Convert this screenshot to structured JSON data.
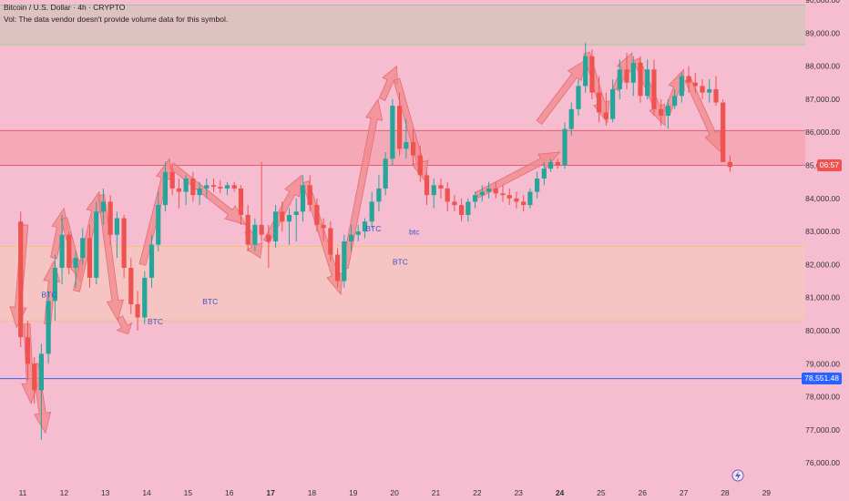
{
  "legend": {
    "symbol_line": "Bitcoin / U.S. Dollar · 4h · CRYPTO",
    "volume_line": "Vol: The data vendor doesn't provide volume data for this symbol."
  },
  "price_tags": {
    "countdown": "06:57",
    "horizontal_line": "78,551.48"
  },
  "colors": {
    "background": "#f6bcd0",
    "up": "#26a69a",
    "down": "#ef5350",
    "arrow_fill": "#f08a8a",
    "zone_top": "#d9c3bf",
    "zone_red": "#f5a6b4",
    "zone_orange": "#f7c6c2",
    "hline": "#2962ff"
  },
  "chart_data": {
    "type": "candlestick",
    "title": "Bitcoin / U.S. Dollar · 4h · CRYPTO",
    "ylim": [
      75400,
      90000
    ],
    "y_ticks": [
      "76,000.00",
      "77,000.00",
      "78,000.00",
      "79,000.00",
      "80,000.00",
      "81,000.00",
      "82,000.00",
      "83,000.00",
      "84,000.00",
      "85,000.00",
      "86,000.00",
      "87,000.00",
      "88,000.00",
      "89,000.00",
      "90,000.00"
    ],
    "x_ticks": [
      {
        "label": "11",
        "day": 11,
        "bold": false
      },
      {
        "label": "12",
        "day": 12,
        "bold": false
      },
      {
        "label": "13",
        "day": 13,
        "bold": false
      },
      {
        "label": "14",
        "day": 14,
        "bold": false
      },
      {
        "label": "15",
        "day": 15,
        "bold": false
      },
      {
        "label": "16",
        "day": 16,
        "bold": false
      },
      {
        "label": "17",
        "day": 17,
        "bold": true
      },
      {
        "label": "18",
        "day": 18,
        "bold": false
      },
      {
        "label": "19",
        "day": 19,
        "bold": false
      },
      {
        "label": "20",
        "day": 20,
        "bold": false
      },
      {
        "label": "21",
        "day": 21,
        "bold": false
      },
      {
        "label": "22",
        "day": 22,
        "bold": false
      },
      {
        "label": "23",
        "day": 23,
        "bold": false
      },
      {
        "label": "24",
        "day": 24,
        "bold": true
      },
      {
        "label": "25",
        "day": 25,
        "bold": false
      },
      {
        "label": "26",
        "day": 26,
        "bold": false
      },
      {
        "label": "27",
        "day": 27,
        "bold": false
      },
      {
        "label": "28",
        "day": 28,
        "bold": false
      },
      {
        "label": "29",
        "day": 29,
        "bold": false
      }
    ],
    "zones": [
      {
        "name": "upper-resistance-zone",
        "y1": 88650,
        "y2": 89850,
        "color": "#d9c3bf",
        "border": "#9cc79c"
      },
      {
        "name": "mid-red-zone",
        "y1": 85000,
        "y2": 86050,
        "color": "#f5a6b4",
        "border": "#e06070"
      },
      {
        "name": "support-zone",
        "y1": 80300,
        "y2": 82550,
        "color": "#f7c6c2",
        "border": "#f2c27a"
      }
    ],
    "hline": 78551.48,
    "candles": [
      {
        "d": 10.95,
        "o": 83300,
        "h": 83600,
        "l": 79500,
        "c": 79800
      },
      {
        "d": 11.12,
        "o": 79800,
        "h": 80300,
        "l": 78500,
        "c": 79000
      },
      {
        "d": 11.28,
        "o": 79000,
        "h": 79200,
        "l": 77800,
        "c": 78200
      },
      {
        "d": 11.45,
        "o": 78200,
        "h": 79600,
        "l": 76700,
        "c": 79300
      },
      {
        "d": 11.62,
        "o": 79300,
        "h": 81200,
        "l": 79000,
        "c": 80900
      },
      {
        "d": 11.78,
        "o": 80900,
        "h": 82300,
        "l": 80300,
        "c": 81900
      },
      {
        "d": 11.95,
        "o": 81900,
        "h": 83500,
        "l": 81400,
        "c": 82900
      },
      {
        "d": 12.12,
        "o": 82900,
        "h": 83000,
        "l": 81700,
        "c": 81900
      },
      {
        "d": 12.28,
        "o": 81900,
        "h": 82400,
        "l": 81300,
        "c": 82200
      },
      {
        "d": 12.45,
        "o": 82200,
        "h": 83100,
        "l": 82000,
        "c": 82800
      },
      {
        "d": 12.62,
        "o": 82800,
        "h": 83200,
        "l": 81300,
        "c": 81600
      },
      {
        "d": 12.78,
        "o": 81600,
        "h": 83900,
        "l": 81400,
        "c": 83600
      },
      {
        "d": 12.95,
        "o": 83600,
        "h": 84300,
        "l": 83200,
        "c": 83900
      },
      {
        "d": 13.12,
        "o": 83900,
        "h": 84100,
        "l": 82600,
        "c": 82900
      },
      {
        "d": 13.28,
        "o": 82900,
        "h": 83600,
        "l": 82200,
        "c": 83400
      },
      {
        "d": 13.45,
        "o": 83400,
        "h": 83500,
        "l": 81600,
        "c": 81900
      },
      {
        "d": 13.62,
        "o": 81900,
        "h": 82200,
        "l": 80500,
        "c": 80800
      },
      {
        "d": 13.78,
        "o": 80800,
        "h": 81200,
        "l": 80000,
        "c": 80400
      },
      {
        "d": 13.95,
        "o": 80400,
        "h": 81800,
        "l": 80200,
        "c": 81600
      },
      {
        "d": 14.12,
        "o": 81600,
        "h": 82900,
        "l": 81300,
        "c": 82600
      },
      {
        "d": 14.28,
        "o": 82600,
        "h": 84200,
        "l": 82400,
        "c": 83800
      },
      {
        "d": 14.45,
        "o": 83800,
        "h": 85100,
        "l": 83600,
        "c": 84800
      },
      {
        "d": 14.62,
        "o": 84800,
        "h": 85000,
        "l": 84100,
        "c": 84300
      },
      {
        "d": 14.78,
        "o": 84300,
        "h": 84600,
        "l": 83700,
        "c": 84200
      },
      {
        "d": 14.95,
        "o": 84200,
        "h": 84700,
        "l": 83800,
        "c": 84600
      },
      {
        "d": 15.12,
        "o": 84600,
        "h": 84800,
        "l": 83900,
        "c": 84100
      },
      {
        "d": 15.28,
        "o": 84100,
        "h": 84500,
        "l": 83800,
        "c": 84300
      },
      {
        "d": 15.45,
        "o": 84300,
        "h": 84600,
        "l": 84000,
        "c": 84400
      },
      {
        "d": 15.62,
        "o": 84400,
        "h": 84600,
        "l": 84200,
        "c": 84350
      },
      {
        "d": 15.78,
        "o": 84350,
        "h": 84550,
        "l": 84150,
        "c": 84300
      },
      {
        "d": 15.95,
        "o": 84300,
        "h": 84500,
        "l": 84100,
        "c": 84400
      },
      {
        "d": 16.12,
        "o": 84400,
        "h": 84500,
        "l": 84200,
        "c": 84300
      },
      {
        "d": 16.28,
        "o": 84300,
        "h": 84400,
        "l": 83200,
        "c": 83500
      },
      {
        "d": 16.45,
        "o": 83500,
        "h": 83800,
        "l": 82400,
        "c": 82600
      },
      {
        "d": 16.62,
        "o": 82600,
        "h": 83400,
        "l": 82400,
        "c": 83200
      },
      {
        "d": 16.78,
        "o": 83200,
        "h": 85100,
        "l": 82700,
        "c": 82900
      },
      {
        "d": 16.95,
        "o": 82900,
        "h": 83200,
        "l": 81900,
        "c": 82700
      },
      {
        "d": 17.12,
        "o": 82700,
        "h": 83800,
        "l": 82500,
        "c": 83600
      },
      {
        "d": 17.28,
        "o": 83600,
        "h": 83900,
        "l": 83000,
        "c": 83300
      },
      {
        "d": 17.45,
        "o": 83300,
        "h": 83700,
        "l": 82600,
        "c": 83500
      },
      {
        "d": 17.62,
        "o": 83500,
        "h": 84000,
        "l": 82700,
        "c": 83600
      },
      {
        "d": 17.78,
        "o": 83600,
        "h": 84700,
        "l": 83300,
        "c": 84400
      },
      {
        "d": 17.95,
        "o": 84400,
        "h": 84700,
        "l": 83600,
        "c": 83800
      },
      {
        "d": 18.12,
        "o": 83800,
        "h": 84000,
        "l": 83000,
        "c": 83200
      },
      {
        "d": 18.28,
        "o": 83200,
        "h": 83400,
        "l": 82700,
        "c": 83100
      },
      {
        "d": 18.45,
        "o": 83100,
        "h": 83300,
        "l": 82100,
        "c": 82300
      },
      {
        "d": 18.62,
        "o": 82300,
        "h": 82500,
        "l": 81300,
        "c": 81500
      },
      {
        "d": 18.78,
        "o": 81500,
        "h": 82900,
        "l": 81300,
        "c": 82700
      },
      {
        "d": 18.95,
        "o": 82700,
        "h": 83200,
        "l": 82400,
        "c": 82900
      },
      {
        "d": 19.12,
        "o": 82900,
        "h": 83200,
        "l": 82700,
        "c": 83000
      },
      {
        "d": 19.28,
        "o": 83000,
        "h": 83400,
        "l": 82800,
        "c": 83300
      },
      {
        "d": 19.45,
        "o": 83300,
        "h": 84200,
        "l": 83100,
        "c": 83900
      },
      {
        "d": 19.62,
        "o": 83900,
        "h": 84700,
        "l": 83600,
        "c": 84300
      },
      {
        "d": 19.78,
        "o": 84300,
        "h": 85400,
        "l": 84100,
        "c": 85200
      },
      {
        "d": 19.95,
        "o": 85200,
        "h": 87000,
        "l": 85000,
        "c": 86800
      },
      {
        "d": 20.12,
        "o": 86800,
        "h": 87200,
        "l": 85300,
        "c": 85500
      },
      {
        "d": 20.28,
        "o": 85500,
        "h": 86400,
        "l": 85200,
        "c": 85700
      },
      {
        "d": 20.45,
        "o": 85700,
        "h": 86100,
        "l": 85000,
        "c": 85300
      },
      {
        "d": 20.62,
        "o": 85300,
        "h": 85600,
        "l": 84500,
        "c": 84700
      },
      {
        "d": 20.78,
        "o": 84700,
        "h": 84800,
        "l": 83800,
        "c": 84100
      },
      {
        "d": 20.95,
        "o": 84100,
        "h": 84600,
        "l": 83700,
        "c": 84400
      },
      {
        "d": 21.12,
        "o": 84400,
        "h": 84600,
        "l": 84000,
        "c": 84300
      },
      {
        "d": 21.28,
        "o": 84300,
        "h": 84500,
        "l": 83600,
        "c": 83900
      },
      {
        "d": 21.45,
        "o": 83900,
        "h": 84100,
        "l": 83600,
        "c": 83800
      },
      {
        "d": 21.62,
        "o": 83800,
        "h": 84000,
        "l": 83300,
        "c": 83500
      },
      {
        "d": 21.78,
        "o": 83500,
        "h": 84000,
        "l": 83300,
        "c": 83900
      },
      {
        "d": 21.95,
        "o": 83900,
        "h": 84200,
        "l": 83700,
        "c": 84100
      },
      {
        "d": 22.12,
        "o": 84100,
        "h": 84400,
        "l": 83900,
        "c": 84200
      },
      {
        "d": 22.28,
        "o": 84200,
        "h": 84500,
        "l": 84000,
        "c": 84300
      },
      {
        "d": 22.45,
        "o": 84300,
        "h": 84500,
        "l": 84000,
        "c": 84150
      },
      {
        "d": 22.62,
        "o": 84150,
        "h": 84400,
        "l": 83900,
        "c": 84100
      },
      {
        "d": 22.78,
        "o": 84100,
        "h": 84300,
        "l": 83800,
        "c": 84000
      },
      {
        "d": 22.95,
        "o": 84000,
        "h": 84200,
        "l": 83700,
        "c": 83900
      },
      {
        "d": 23.12,
        "o": 83900,
        "h": 84100,
        "l": 83600,
        "c": 83800
      },
      {
        "d": 23.28,
        "o": 83800,
        "h": 84300,
        "l": 83700,
        "c": 84200
      },
      {
        "d": 23.45,
        "o": 84200,
        "h": 84800,
        "l": 84000,
        "c": 84600
      },
      {
        "d": 23.62,
        "o": 84600,
        "h": 85100,
        "l": 84400,
        "c": 84900
      },
      {
        "d": 23.78,
        "o": 84900,
        "h": 85200,
        "l": 84800,
        "c": 85100
      },
      {
        "d": 23.95,
        "o": 85100,
        "h": 85200,
        "l": 84900,
        "c": 85000
      },
      {
        "d": 24.12,
        "o": 85000,
        "h": 86300,
        "l": 84900,
        "c": 86100
      },
      {
        "d": 24.28,
        "o": 86100,
        "h": 86900,
        "l": 85900,
        "c": 86700
      },
      {
        "d": 24.45,
        "o": 86700,
        "h": 87600,
        "l": 86500,
        "c": 87400
      },
      {
        "d": 24.62,
        "o": 87400,
        "h": 88700,
        "l": 87200,
        "c": 88300
      },
      {
        "d": 24.78,
        "o": 88300,
        "h": 88500,
        "l": 87000,
        "c": 87200
      },
      {
        "d": 24.95,
        "o": 87200,
        "h": 87700,
        "l": 86300,
        "c": 86600
      },
      {
        "d": 25.12,
        "o": 86600,
        "h": 87200,
        "l": 86200,
        "c": 86400
      },
      {
        "d": 25.28,
        "o": 86400,
        "h": 87600,
        "l": 86300,
        "c": 87300
      },
      {
        "d": 25.45,
        "o": 87300,
        "h": 88200,
        "l": 87000,
        "c": 87900
      },
      {
        "d": 25.62,
        "o": 87900,
        "h": 88400,
        "l": 87300,
        "c": 87500
      },
      {
        "d": 25.78,
        "o": 87500,
        "h": 88300,
        "l": 87100,
        "c": 88100
      },
      {
        "d": 25.95,
        "o": 88100,
        "h": 88300,
        "l": 86900,
        "c": 87100
      },
      {
        "d": 26.12,
        "o": 87100,
        "h": 88200,
        "l": 87000,
        "c": 87900
      },
      {
        "d": 26.28,
        "o": 87900,
        "h": 88200,
        "l": 86500,
        "c": 86700
      },
      {
        "d": 26.45,
        "o": 86700,
        "h": 87000,
        "l": 86200,
        "c": 86500
      },
      {
        "d": 26.62,
        "o": 86500,
        "h": 87000,
        "l": 86100,
        "c": 86800
      },
      {
        "d": 26.78,
        "o": 86800,
        "h": 87300,
        "l": 86700,
        "c": 87100
      },
      {
        "d": 26.95,
        "o": 87100,
        "h": 87800,
        "l": 86900,
        "c": 87700
      },
      {
        "d": 27.12,
        "o": 87700,
        "h": 88000,
        "l": 87200,
        "c": 87500
      },
      {
        "d": 27.28,
        "o": 87500,
        "h": 87800,
        "l": 87200,
        "c": 87400
      },
      {
        "d": 27.45,
        "o": 87400,
        "h": 87600,
        "l": 87000,
        "c": 87200
      },
      {
        "d": 27.62,
        "o": 87200,
        "h": 87600,
        "l": 86900,
        "c": 87300
      },
      {
        "d": 27.78,
        "o": 87300,
        "h": 87700,
        "l": 86800,
        "c": 86900
      },
      {
        "d": 27.95,
        "o": 86900,
        "h": 87000,
        "l": 85200,
        "c": 85100
      },
      {
        "d": 28.12,
        "o": 85100,
        "h": 85300,
        "l": 84800,
        "c": 84950
      }
    ],
    "annotations": [
      {
        "text": "BTC",
        "d": 11.45,
        "p": 81000
      },
      {
        "text": "BTC",
        "d": 14.02,
        "p": 80200
      },
      {
        "text": "BTC",
        "d": 15.35,
        "p": 80800
      },
      {
        "text": "BTC",
        "d": 19.3,
        "p": 83000
      },
      {
        "text": "btc",
        "d": 20.35,
        "p": 82900
      },
      {
        "text": "BTC",
        "d": 19.95,
        "p": 82000
      }
    ],
    "arrows": [
      {
        "from": [
          11.05,
          83200
        ],
        "to": [
          10.85,
          80100
        ]
      },
      {
        "from": [
          11.1,
          80200
        ],
        "to": [
          11.2,
          77800
        ]
      },
      {
        "from": [
          11.3,
          79000
        ],
        "to": [
          11.55,
          76900
        ]
      },
      {
        "from": [
          11.6,
          80200
        ],
        "to": [
          11.75,
          82100
        ]
      },
      {
        "from": [
          11.75,
          82200
        ],
        "to": [
          12.0,
          83700
        ]
      },
      {
        "from": [
          12.0,
          83400
        ],
        "to": [
          12.4,
          81500
        ]
      },
      {
        "from": [
          12.3,
          81200
        ],
        "to": [
          12.85,
          84200
        ]
      },
      {
        "from": [
          12.9,
          84100
        ],
        "to": [
          13.3,
          80300
        ]
      },
      {
        "from": [
          13.35,
          80400
        ],
        "to": [
          13.55,
          79900
        ]
      },
      {
        "from": [
          13.9,
          82000
        ],
        "to": [
          14.55,
          85200
        ]
      },
      {
        "from": [
          14.6,
          85000
        ],
        "to": [
          16.4,
          83200
        ]
      },
      {
        "from": [
          16.45,
          83000
        ],
        "to": [
          16.75,
          82200
        ]
      },
      {
        "from": [
          16.9,
          82700
        ],
        "to": [
          17.75,
          84700
        ]
      },
      {
        "from": [
          17.85,
          84500
        ],
        "to": [
          18.7,
          81100
        ]
      },
      {
        "from": [
          18.8,
          81900
        ],
        "to": [
          19.6,
          87000
        ]
      },
      {
        "from": [
          19.7,
          87000
        ],
        "to": [
          20.05,
          88000
        ]
      },
      {
        "from": [
          20.05,
          87600
        ],
        "to": [
          20.75,
          84500
        ]
      },
      {
        "from": [
          22.0,
          84100
        ],
        "to": [
          24.0,
          85400
        ]
      },
      {
        "from": [
          23.5,
          86300
        ],
        "to": [
          24.65,
          88200
        ]
      },
      {
        "from": [
          24.65,
          88400
        ],
        "to": [
          25.15,
          86300
        ]
      },
      {
        "from": [
          25.35,
          87300
        ],
        "to": [
          25.75,
          88400
        ]
      },
      {
        "from": [
          25.85,
          88200
        ],
        "to": [
          26.55,
          86200
        ]
      },
      {
        "from": [
          26.6,
          86600
        ],
        "to": [
          27.0,
          87900
        ]
      },
      {
        "from": [
          27.1,
          87600
        ],
        "to": [
          27.9,
          85400
        ]
      }
    ],
    "countdown_price": 85000,
    "hline_price": 78551.48
  }
}
